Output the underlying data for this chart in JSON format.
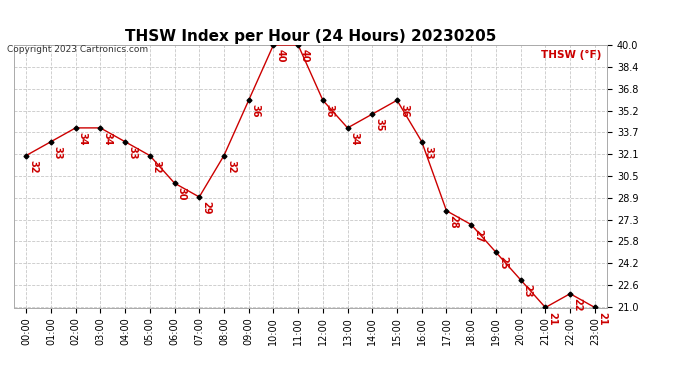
{
  "title": "THSW Index per Hour (24 Hours) 20230205",
  "copyright": "Copyright 2023 Cartronics.com",
  "legend_label": "THSW (°F)",
  "hours": [
    "00:00",
    "01:00",
    "02:00",
    "03:00",
    "04:00",
    "05:00",
    "06:00",
    "07:00",
    "08:00",
    "09:00",
    "10:00",
    "11:00",
    "12:00",
    "13:00",
    "14:00",
    "15:00",
    "16:00",
    "17:00",
    "18:00",
    "19:00",
    "20:00",
    "21:00",
    "22:00",
    "23:00"
  ],
  "values": [
    32,
    33,
    34,
    34,
    33,
    32,
    30,
    29,
    32,
    36,
    40,
    40,
    36,
    34,
    35,
    36,
    33,
    28,
    27,
    25,
    23,
    21,
    22,
    21
  ],
  "yticks": [
    21.0,
    22.6,
    24.2,
    25.8,
    27.3,
    28.9,
    30.5,
    32.1,
    33.7,
    35.2,
    36.8,
    38.4,
    40.0
  ],
  "line_color": "#cc0000",
  "marker_color": "#000000",
  "background_color": "#ffffff",
  "grid_color": "#c8c8c8",
  "ylim_min": 21.0,
  "ylim_max": 40.0,
  "title_fontsize": 11,
  "anno_fontsize": 7,
  "tick_fontsize": 7,
  "copyright_fontsize": 6.5,
  "legend_fontsize": 7.5
}
